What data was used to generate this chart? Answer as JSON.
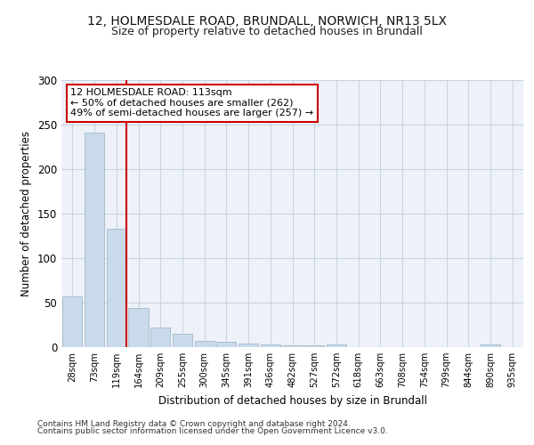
{
  "title_line1": "12, HOLMESDALE ROAD, BRUNDALL, NORWICH, NR13 5LX",
  "title_line2": "Size of property relative to detached houses in Brundall",
  "xlabel": "Distribution of detached houses by size in Brundall",
  "ylabel": "Number of detached properties",
  "categories": [
    "28sqm",
    "73sqm",
    "119sqm",
    "164sqm",
    "209sqm",
    "255sqm",
    "300sqm",
    "345sqm",
    "391sqm",
    "436sqm",
    "482sqm",
    "527sqm",
    "572sqm",
    "618sqm",
    "663sqm",
    "708sqm",
    "754sqm",
    "799sqm",
    "844sqm",
    "890sqm",
    "935sqm"
  ],
  "values": [
    57,
    241,
    133,
    44,
    22,
    15,
    7,
    6,
    4,
    3,
    2,
    2,
    3,
    0,
    0,
    0,
    0,
    0,
    0,
    3,
    0
  ],
  "bar_color": "#c9daea",
  "bar_edge_color": "#aabfcf",
  "vline_index": 2,
  "vline_color": "#cc0000",
  "annotation_text": "12 HOLMESDALE ROAD: 113sqm\n← 50% of detached houses are smaller (262)\n49% of semi-detached houses are larger (257) →",
  "annotation_box_color": "#ffffff",
  "annotation_box_edge": "#cc0000",
  "ylim": [
    0,
    300
  ],
  "yticks": [
    0,
    50,
    100,
    150,
    200,
    250,
    300
  ],
  "grid_color": "#c8d4e4",
  "bg_color": "#eef2f8",
  "footer1": "Contains HM Land Registry data © Crown copyright and database right 2024.",
  "footer2": "Contains public sector information licensed under the Open Government Licence v3.0."
}
